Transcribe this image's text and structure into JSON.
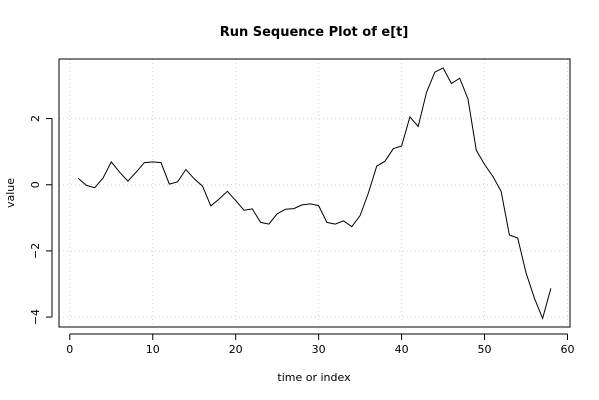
{
  "chart_data": {
    "type": "line",
    "title": "Run Sequence Plot of e[t]",
    "xlabel": "time or index",
    "ylabel": "value",
    "xlim": [
      -1.3,
      60.3
    ],
    "ylim": [
      -4.3,
      3.8
    ],
    "xticks": [
      0,
      10,
      20,
      30,
      40,
      50,
      60
    ],
    "yticks": [
      -4,
      -2,
      0,
      2
    ],
    "grid": true,
    "series": [
      {
        "x": [
          1,
          2,
          3,
          4,
          5,
          6,
          7,
          8,
          9,
          10,
          11,
          12,
          13,
          14,
          15,
          16,
          17,
          18,
          19,
          20,
          21,
          22,
          23,
          24,
          25,
          26,
          27,
          28,
          29,
          30,
          31,
          32,
          33,
          34,
          35,
          36,
          37,
          38,
          39,
          40,
          41,
          42,
          43,
          44,
          45,
          46,
          47,
          48,
          49,
          50,
          51,
          52,
          53,
          54,
          55,
          56,
          57,
          58
        ],
        "values": [
          0.2,
          -0.02,
          -0.09,
          0.2,
          0.69,
          0.38,
          0.11,
          0.38,
          0.67,
          0.69,
          0.67,
          0.02,
          0.09,
          0.46,
          0.18,
          -0.04,
          -0.64,
          -0.43,
          -0.2,
          -0.48,
          -0.77,
          -0.73,
          -1.14,
          -1.19,
          -0.88,
          -0.74,
          -0.72,
          -0.61,
          -0.58,
          -0.63,
          -1.14,
          -1.19,
          -1.09,
          -1.27,
          -0.93,
          -0.25,
          0.56,
          0.71,
          1.09,
          1.17,
          2.05,
          1.76,
          2.79,
          3.4,
          3.53,
          3.06,
          3.22,
          2.59,
          1.04,
          0.61,
          0.25,
          -0.2,
          -1.52,
          -1.61,
          -2.66,
          -3.42,
          -4.04,
          -3.13
        ]
      }
    ]
  }
}
